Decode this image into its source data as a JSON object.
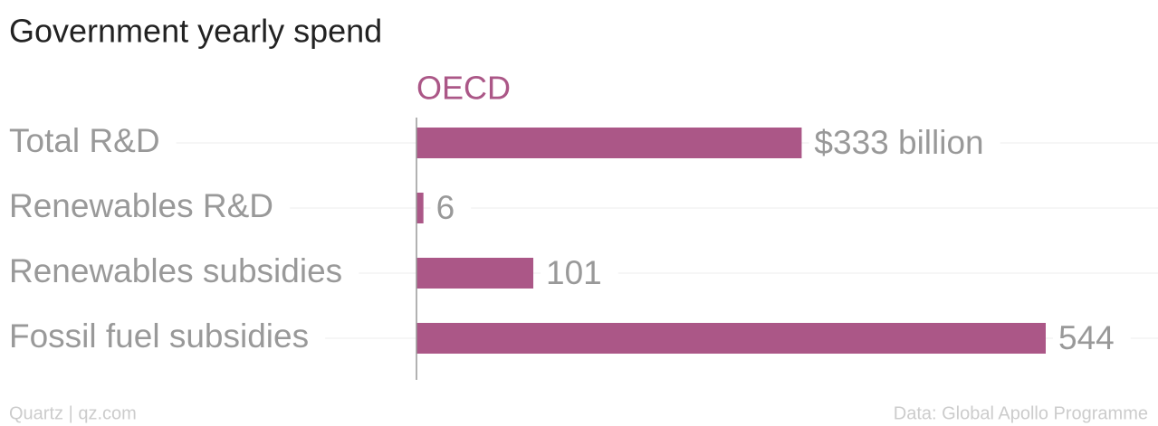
{
  "chart_data": {
    "type": "bar",
    "orientation": "horizontal",
    "title": "Government yearly spend",
    "categories": [
      "Total R&D",
      "Renewables R&D",
      "Renewables subsidies",
      "Fossil fuel subsidies"
    ],
    "series": [
      {
        "name": "OECD",
        "color": "#ab5787",
        "values": [
          333,
          6,
          101,
          544
        ],
        "value_labels": [
          "$333 billion",
          "6",
          "101",
          "544"
        ]
      }
    ],
    "xlim": [
      0,
      544
    ],
    "footer_left": "Quartz | qz.com",
    "footer_right": "Data: Global Apollo Programme"
  }
}
